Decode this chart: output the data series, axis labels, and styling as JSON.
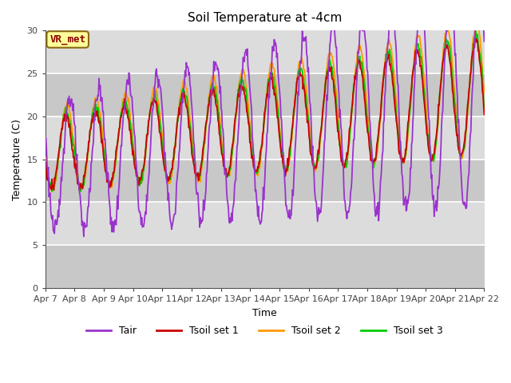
{
  "title": "Soil Temperature at -4cm",
  "xlabel": "Time",
  "ylabel": "Temperature (C)",
  "ylim": [
    0,
    30
  ],
  "colors": {
    "Tair": "#9933CC",
    "Tsoil1": "#CC0000",
    "Tsoil2": "#FF9900",
    "Tsoil3": "#00CC00"
  },
  "bg_color": "#DCDCDC",
  "bg_band_light": "#DCDCDC",
  "bg_band_dark": "#C8C8C8",
  "annotation_text": "VR_met",
  "annotation_color": "#8B0000",
  "annotation_bg": "#FFFF99",
  "annotation_edge": "#8B6914",
  "x_tick_labels": [
    "Apr 7",
    "Apr 8",
    "Apr 9",
    "Apr 10",
    "Apr 11",
    "Apr 12",
    "Apr 13",
    "Apr 14",
    "Apr 15",
    "Apr 16",
    "Apr 17",
    "Apr 18",
    "Apr 19",
    "Apr 20",
    "Apr 21",
    "Apr 22"
  ],
  "title_fontsize": 11,
  "axis_label_fontsize": 9,
  "tick_fontsize": 8,
  "legend_fontsize": 9
}
